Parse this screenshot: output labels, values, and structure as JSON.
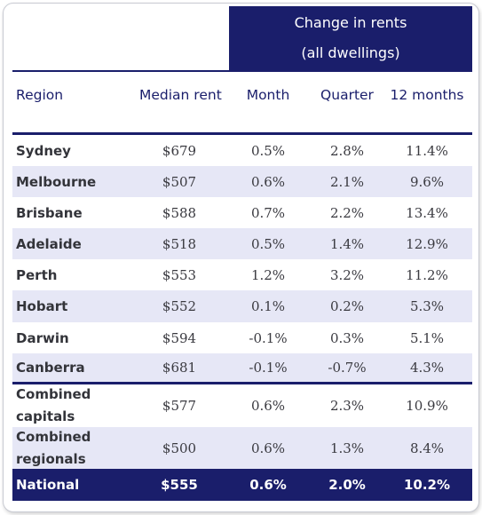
{
  "header_group": {
    "line1": "Change in rents",
    "line2": "(all dwellings)"
  },
  "columns": {
    "region": "Region",
    "median": "Median rent",
    "month": "Month",
    "quarter": "Quarter",
    "twelve": "12 months"
  },
  "rows": [
    {
      "region": "Sydney",
      "median": "$679",
      "month": "0.5%",
      "quarter": "2.8%",
      "twelve": "11.4%"
    },
    {
      "region": "Melbourne",
      "median": "$507",
      "month": "0.6%",
      "quarter": "2.1%",
      "twelve": "9.6%"
    },
    {
      "region": "Brisbane",
      "median": "$588",
      "month": "0.7%",
      "quarter": "2.2%",
      "twelve": "13.4%"
    },
    {
      "region": "Adelaide",
      "median": "$518",
      "month": "0.5%",
      "quarter": "1.4%",
      "twelve": "12.9%"
    },
    {
      "region": "Perth",
      "median": "$553",
      "month": "1.2%",
      "quarter": "3.2%",
      "twelve": "11.2%"
    },
    {
      "region": "Hobart",
      "median": "$552",
      "month": "0.1%",
      "quarter": "0.2%",
      "twelve": "5.3%"
    },
    {
      "region": "Darwin",
      "median": "$594",
      "month": "-0.1%",
      "quarter": "0.3%",
      "twelve": "5.1%"
    },
    {
      "region": "Canberra",
      "median": "$681",
      "month": "-0.1%",
      "quarter": "-0.7%",
      "twelve": "4.3%"
    },
    {
      "region": "Combined capitals",
      "median": "$577",
      "month": "0.6%",
      "quarter": "2.3%",
      "twelve": "10.9%"
    },
    {
      "region": "Combined regionals",
      "median": "$500",
      "month": "0.6%",
      "quarter": "1.3%",
      "twelve": "8.4%"
    },
    {
      "region": "National",
      "median": "$555",
      "month": "0.6%",
      "quarter": "2.0%",
      "twelve": "10.2%"
    }
  ],
  "colors": {
    "navy": "#1a1e6b",
    "row_shade": "#e6e7f6",
    "text": "#3a3a40"
  }
}
